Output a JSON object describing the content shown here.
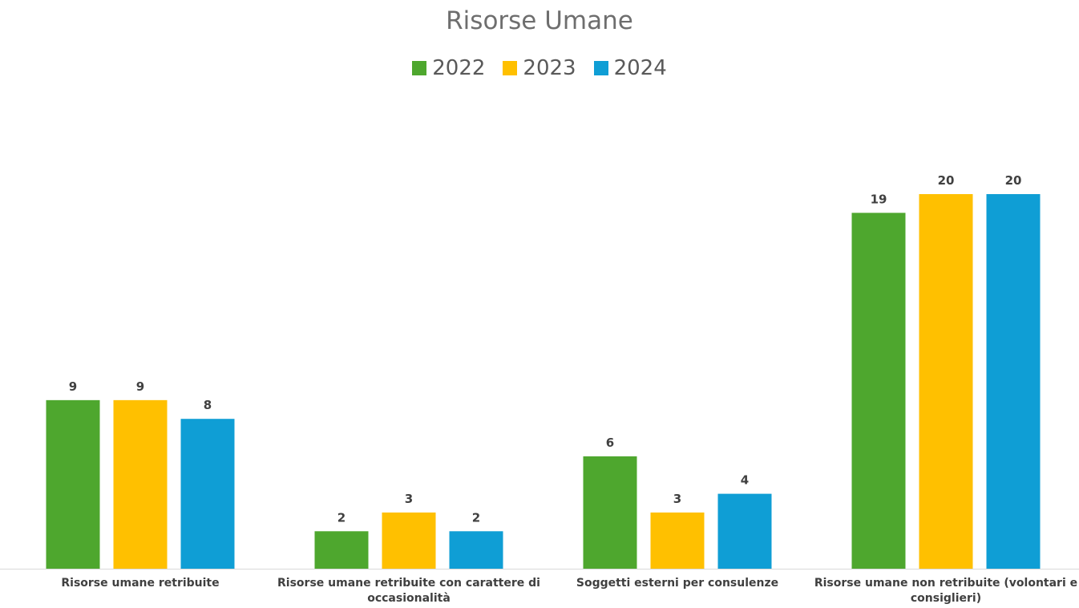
{
  "chart_data": {
    "type": "bar",
    "title": "Risorse Umane",
    "categories": [
      "Risorse umane retribuite",
      "Risorse umane retribuite con carattere di occasionalità",
      "Soggetti esterni per consulenze",
      "Risorse umane non retribuite (volontari e consiglieri)"
    ],
    "series": [
      {
        "name": "2022",
        "color": "#4ea72e",
        "values": [
          9,
          2,
          6,
          19
        ]
      },
      {
        "name": "2023",
        "color": "#ffc000",
        "values": [
          9,
          3,
          3,
          20
        ]
      },
      {
        "name": "2024",
        "color": "#0f9ed5",
        "values": [
          8,
          2,
          4,
          20
        ]
      }
    ],
    "ylim": [
      0,
      20
    ],
    "legend": "top",
    "data_labels": true
  }
}
